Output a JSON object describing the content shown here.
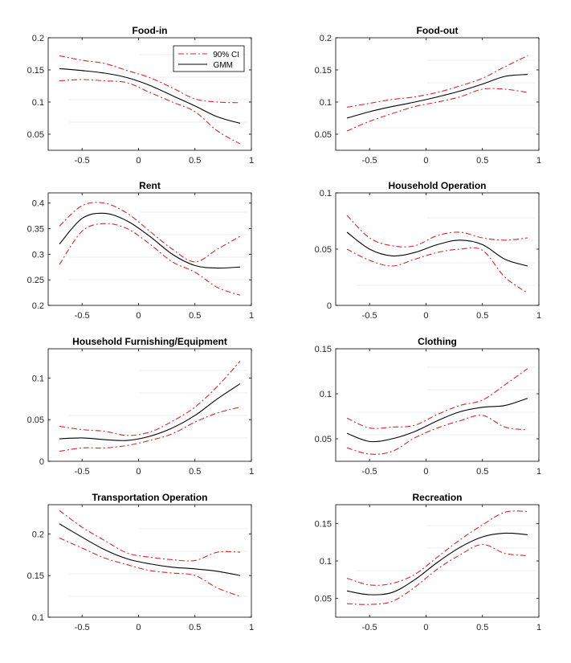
{
  "colors": {
    "estimate": "#000000",
    "ci": "#d62728",
    "ci_inner": "#444444"
  },
  "legend": {
    "ci_label": "90% CI",
    "est_label": "GMM"
  },
  "chart_data": [
    {
      "type": "line",
      "title": "Food-in",
      "xlim": [
        -0.8,
        1
      ],
      "ylim": [
        0.025,
        0.2
      ],
      "xticks": [
        -0.5,
        0,
        0.5,
        1
      ],
      "xtick_labels": [
        "-0.5",
        "0",
        "0.5",
        "1"
      ],
      "yticks": [
        0.05,
        0.1,
        0.15,
        0.2
      ],
      "ytick_labels": [
        "0.05",
        "0.1",
        "0.15",
        "0.2"
      ],
      "x": [
        -0.7,
        -0.5,
        -0.3,
        -0.1,
        0.1,
        0.3,
        0.5,
        0.7,
        0.9
      ],
      "series": [
        {
          "name": "GMM",
          "values": [
            0.152,
            0.149,
            0.145,
            0.138,
            0.126,
            0.11,
            0.094,
            0.077,
            0.067
          ]
        },
        {
          "name": "90% CI upper",
          "values": [
            0.172,
            0.165,
            0.16,
            0.149,
            0.138,
            0.122,
            0.105,
            0.1,
            0.099
          ]
        },
        {
          "name": "90% CI lower",
          "values": [
            0.133,
            0.135,
            0.133,
            0.13,
            0.115,
            0.1,
            0.085,
            0.055,
            0.035
          ]
        }
      ],
      "legend": true
    },
    {
      "type": "line",
      "title": "Food-out",
      "xlim": [
        -0.8,
        1
      ],
      "ylim": [
        0.025,
        0.2
      ],
      "xticks": [
        -0.5,
        0,
        0.5,
        1
      ],
      "xtick_labels": [
        "-0.5",
        "0",
        "0.5",
        "1"
      ],
      "yticks": [
        0.05,
        0.1,
        0.15,
        0.2
      ],
      "ytick_labels": [
        "0.05",
        "0.1",
        "0.15",
        "0.2"
      ],
      "x": [
        -0.7,
        -0.5,
        -0.3,
        -0.1,
        0.1,
        0.3,
        0.5,
        0.7,
        0.9
      ],
      "series": [
        {
          "name": "GMM",
          "values": [
            0.075,
            0.085,
            0.093,
            0.1,
            0.108,
            0.117,
            0.128,
            0.14,
            0.143
          ]
        },
        {
          "name": "90% CI upper",
          "values": [
            0.092,
            0.098,
            0.104,
            0.108,
            0.115,
            0.125,
            0.137,
            0.155,
            0.172
          ]
        },
        {
          "name": "90% CI lower",
          "values": [
            0.055,
            0.07,
            0.082,
            0.093,
            0.1,
            0.108,
            0.12,
            0.12,
            0.115
          ]
        }
      ]
    },
    {
      "type": "line",
      "title": "Rent",
      "xlim": [
        -0.8,
        1
      ],
      "ylim": [
        0.2,
        0.42
      ],
      "xticks": [
        -0.5,
        0,
        0.5,
        1
      ],
      "xtick_labels": [
        "-0.5",
        "0",
        "0.5",
        "1"
      ],
      "yticks": [
        0.2,
        0.25,
        0.3,
        0.35,
        0.4
      ],
      "ytick_labels": [
        "0.2",
        "0.25",
        "0.3",
        "0.35",
        "0.4"
      ],
      "x": [
        -0.7,
        -0.5,
        -0.3,
        -0.1,
        0.1,
        0.3,
        0.5,
        0.7,
        0.9
      ],
      "series": [
        {
          "name": "GMM",
          "values": [
            0.32,
            0.37,
            0.38,
            0.365,
            0.335,
            0.3,
            0.278,
            0.273,
            0.275
          ]
        },
        {
          "name": "90% CI upper",
          "values": [
            0.355,
            0.395,
            0.4,
            0.38,
            0.345,
            0.31,
            0.285,
            0.31,
            0.335
          ]
        },
        {
          "name": "90% CI lower",
          "values": [
            0.28,
            0.345,
            0.36,
            0.35,
            0.32,
            0.285,
            0.265,
            0.235,
            0.22
          ]
        }
      ]
    },
    {
      "type": "line",
      "title": "Household Operation",
      "xlim": [
        -0.8,
        1
      ],
      "ylim": [
        0,
        0.1
      ],
      "xticks": [
        -0.5,
        0,
        0.5,
        1
      ],
      "xtick_labels": [
        "-0.5",
        "0",
        "0.5",
        "1"
      ],
      "yticks": [
        0,
        0.05,
        0.1
      ],
      "ytick_labels": [
        "0",
        "0.05",
        "0.1"
      ],
      "x": [
        -0.7,
        -0.5,
        -0.3,
        -0.1,
        0.1,
        0.3,
        0.5,
        0.7,
        0.9
      ],
      "series": [
        {
          "name": "GMM",
          "values": [
            0.065,
            0.05,
            0.044,
            0.047,
            0.054,
            0.058,
            0.054,
            0.041,
            0.035
          ]
        },
        {
          "name": "90% CI upper",
          "values": [
            0.08,
            0.06,
            0.053,
            0.053,
            0.062,
            0.065,
            0.06,
            0.058,
            0.06
          ]
        },
        {
          "name": "90% CI lower",
          "values": [
            0.05,
            0.04,
            0.035,
            0.041,
            0.047,
            0.05,
            0.049,
            0.025,
            0.011
          ]
        }
      ]
    },
    {
      "type": "line",
      "title": "Household Furnishing/Equipment",
      "xlim": [
        -0.8,
        1
      ],
      "ylim": [
        0,
        0.135
      ],
      "xticks": [
        -0.5,
        0,
        0.5,
        1
      ],
      "xtick_labels": [
        "-0.5",
        "0",
        "0.5",
        "1"
      ],
      "yticks": [
        0,
        0.05,
        0.1
      ],
      "ytick_labels": [
        "0",
        "0.05",
        "0.1"
      ],
      "x": [
        -0.7,
        -0.5,
        -0.3,
        -0.1,
        0.1,
        0.3,
        0.5,
        0.7,
        0.9
      ],
      "series": [
        {
          "name": "GMM",
          "values": [
            0.027,
            0.028,
            0.026,
            0.025,
            0.03,
            0.04,
            0.055,
            0.075,
            0.093
          ]
        },
        {
          "name": "90% CI upper",
          "values": [
            0.042,
            0.038,
            0.036,
            0.031,
            0.035,
            0.048,
            0.065,
            0.09,
            0.12
          ]
        },
        {
          "name": "90% CI lower",
          "values": [
            0.012,
            0.016,
            0.016,
            0.019,
            0.025,
            0.033,
            0.047,
            0.058,
            0.065
          ]
        }
      ]
    },
    {
      "type": "line",
      "title": "Clothing",
      "xlim": [
        -0.8,
        1
      ],
      "ylim": [
        0.025,
        0.15
      ],
      "xticks": [
        -0.5,
        0,
        0.5,
        1
      ],
      "xtick_labels": [
        "-0.5",
        "0",
        "0.5",
        "1"
      ],
      "yticks": [
        0.05,
        0.1,
        0.15
      ],
      "ytick_labels": [
        "0.05",
        "0.1",
        "0.15"
      ],
      "x": [
        -0.7,
        -0.5,
        -0.3,
        -0.1,
        0.1,
        0.3,
        0.5,
        0.7,
        0.9
      ],
      "series": [
        {
          "name": "GMM",
          "values": [
            0.056,
            0.047,
            0.05,
            0.058,
            0.07,
            0.08,
            0.085,
            0.087,
            0.095
          ]
        },
        {
          "name": "90% CI upper",
          "values": [
            0.073,
            0.062,
            0.063,
            0.065,
            0.077,
            0.087,
            0.093,
            0.11,
            0.128
          ]
        },
        {
          "name": "90% CI lower",
          "values": [
            0.04,
            0.033,
            0.036,
            0.051,
            0.062,
            0.07,
            0.076,
            0.063,
            0.06
          ]
        }
      ]
    },
    {
      "type": "line",
      "title": "Transportation Operation",
      "xlim": [
        -0.8,
        1
      ],
      "ylim": [
        0.1,
        0.235
      ],
      "xticks": [
        -0.5,
        0,
        0.5,
        1
      ],
      "xtick_labels": [
        "-0.5",
        "0",
        "0.5",
        "1"
      ],
      "yticks": [
        0.1,
        0.15,
        0.2
      ],
      "ytick_labels": [
        "0.1",
        "0.15",
        "0.2"
      ],
      "x": [
        -0.7,
        -0.5,
        -0.3,
        -0.1,
        0.1,
        0.3,
        0.5,
        0.7,
        0.9
      ],
      "series": [
        {
          "name": "GMM",
          "values": [
            0.212,
            0.196,
            0.181,
            0.17,
            0.164,
            0.16,
            0.158,
            0.155,
            0.15
          ]
        },
        {
          "name": "90% CI upper",
          "values": [
            0.228,
            0.208,
            0.192,
            0.177,
            0.172,
            0.169,
            0.168,
            0.178,
            0.178
          ]
        },
        {
          "name": "90% CI lower",
          "values": [
            0.195,
            0.183,
            0.171,
            0.163,
            0.156,
            0.153,
            0.15,
            0.135,
            0.125
          ]
        }
      ]
    },
    {
      "type": "line",
      "title": "Recreation",
      "xlim": [
        -0.8,
        1
      ],
      "ylim": [
        0.025,
        0.175
      ],
      "xticks": [
        -0.5,
        0,
        0.5,
        1
      ],
      "xtick_labels": [
        "-0.5",
        "0",
        "0.5",
        "1"
      ],
      "yticks": [
        0.05,
        0.1,
        0.15
      ],
      "ytick_labels": [
        "0.05",
        "0.1",
        "0.15"
      ],
      "x": [
        -0.7,
        -0.5,
        -0.3,
        -0.1,
        0.1,
        0.3,
        0.5,
        0.7,
        0.9
      ],
      "series": [
        {
          "name": "GMM",
          "values": [
            0.06,
            0.055,
            0.058,
            0.075,
            0.098,
            0.118,
            0.132,
            0.137,
            0.135
          ]
        },
        {
          "name": "90% CI upper",
          "values": [
            0.077,
            0.068,
            0.07,
            0.082,
            0.105,
            0.128,
            0.148,
            0.165,
            0.166
          ]
        },
        {
          "name": "90% CI lower",
          "values": [
            0.043,
            0.042,
            0.046,
            0.065,
            0.089,
            0.108,
            0.122,
            0.11,
            0.107
          ]
        }
      ]
    }
  ]
}
